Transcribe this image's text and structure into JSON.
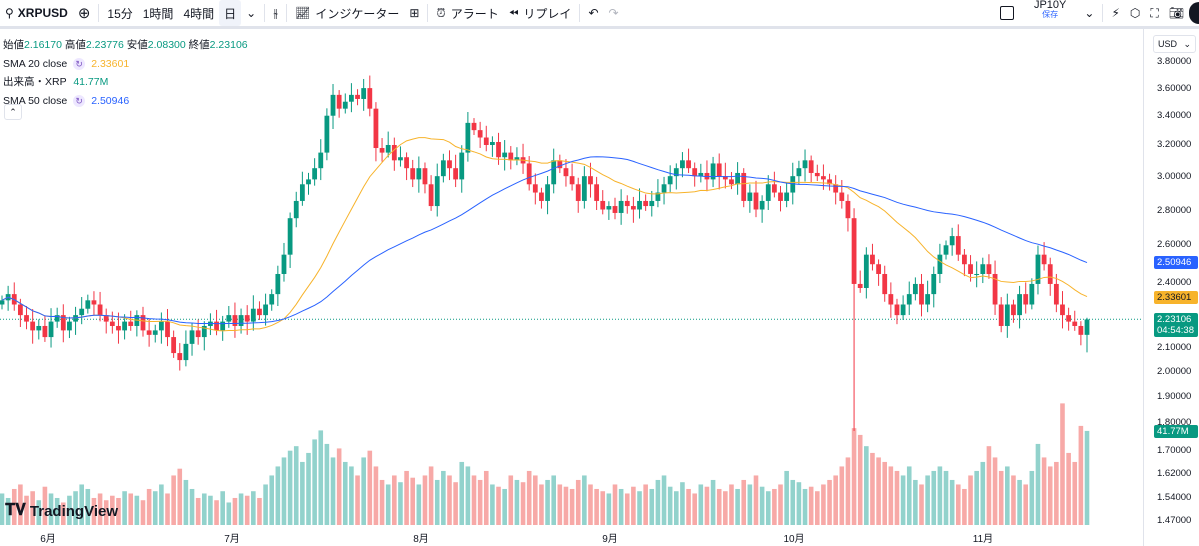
{
  "toolbar": {
    "symbol": "XRPUSD",
    "intervals": [
      "15分",
      "1時間",
      "4時間",
      "日"
    ],
    "indicators": "インジケーター",
    "alert": "アラート",
    "replay": "リプレイ",
    "layout_name": "JP10Y",
    "save": "保存"
  },
  "legend": {
    "open_label": "始値",
    "open": "2.16170",
    "high_label": "高値",
    "high": "2.23776",
    "low_label": "安値",
    "low": "2.08300",
    "close_label": "終値",
    "close": "2.23106",
    "sma20_label": "SMA 20 close",
    "sma20": "2.33601",
    "volume_label": "出来高・XRP",
    "volume": "41.77M",
    "sma50_label": "SMA 50 close",
    "sma50": "2.50946"
  },
  "axis": {
    "currency": "USD",
    "ticks": [
      "3.80000",
      "3.60000",
      "3.40000",
      "3.20000",
      "3.00000",
      "2.80000",
      "2.60000",
      "2.40000",
      "2.10000",
      "2.00000",
      "1.90000",
      "1.80000",
      "1.70000",
      "1.62000",
      "1.54000",
      "1.47000"
    ],
    "last_price": "2.23106",
    "countdown": "04:54:38",
    "sma20_tag": "2.33601",
    "sma50_tag": "2.50946",
    "volume_tag": "41.77M"
  },
  "months": [
    "6月",
    "7月",
    "8月",
    "9月",
    "10月",
    "11月"
  ],
  "brand": "TradingView",
  "colors": {
    "up": "#089981",
    "down": "#f23645",
    "sma20": "#f7b32b",
    "sma50": "#2962ff",
    "vol_up": "#92d2cc",
    "vol_down": "#f7a9a7"
  },
  "chart_data": {
    "type": "candlestick",
    "first_open": 2.3,
    "closes": [
      2.32,
      2.35,
      2.3,
      2.25,
      2.22,
      2.18,
      2.2,
      2.15,
      2.22,
      2.25,
      2.18,
      2.22,
      2.25,
      2.28,
      2.32,
      2.3,
      2.25,
      2.22,
      2.2,
      2.18,
      2.22,
      2.2,
      2.25,
      2.18,
      2.16,
      2.18,
      2.22,
      2.15,
      2.08,
      2.05,
      2.12,
      2.18,
      2.15,
      2.2,
      2.22,
      2.18,
      2.22,
      2.25,
      2.2,
      2.25,
      2.22,
      2.28,
      2.25,
      2.3,
      2.35,
      2.45,
      2.55,
      2.75,
      2.85,
      2.95,
      2.98,
      3.05,
      3.15,
      3.4,
      3.55,
      3.45,
      3.5,
      3.55,
      3.52,
      3.6,
      3.45,
      3.18,
      3.15,
      3.2,
      3.1,
      3.12,
      3.05,
      2.98,
      3.05,
      2.95,
      2.82,
      3.0,
      3.1,
      3.05,
      2.98,
      3.15,
      3.35,
      3.3,
      3.25,
      3.2,
      3.22,
      3.12,
      3.15,
      3.1,
      3.12,
      3.08,
      2.95,
      2.9,
      2.85,
      2.95,
      3.1,
      3.05,
      3.0,
      2.95,
      2.85,
      3.0,
      2.95,
      2.85,
      2.8,
      2.82,
      2.78,
      2.85,
      2.82,
      2.8,
      2.85,
      2.82,
      2.85,
      2.9,
      2.95,
      3.0,
      3.05,
      3.1,
      3.05,
      3.0,
      3.02,
      2.98,
      3.08,
      3.0,
      2.98,
      2.95,
      3.02,
      2.85,
      2.9,
      2.8,
      2.85,
      2.95,
      2.9,
      2.85,
      2.9,
      3.0,
      3.05,
      3.1,
      3.02,
      3.0,
      2.98,
      2.95,
      2.9,
      2.85,
      2.75,
      2.4,
      2.38,
      2.55,
      2.5,
      2.45,
      2.35,
      2.3,
      2.25,
      2.3,
      2.35,
      2.4,
      2.3,
      2.35,
      2.45,
      2.55,
      2.6,
      2.65,
      2.55,
      2.5,
      2.45,
      2.45,
      2.5,
      2.45,
      2.3,
      2.2,
      2.3,
      2.25,
      2.35,
      2.3,
      2.4,
      2.55,
      2.5,
      2.4,
      2.3,
      2.25,
      2.22,
      2.2,
      2.16,
      2.23
    ],
    "volumes": [
      14,
      12,
      16,
      18,
      13,
      15,
      11,
      17,
      14,
      12,
      10,
      13,
      15,
      18,
      16,
      12,
      14,
      11,
      13,
      12,
      15,
      14,
      13,
      11,
      16,
      15,
      18,
      14,
      22,
      25,
      20,
      16,
      12,
      14,
      13,
      11,
      15,
      10,
      12,
      14,
      13,
      15,
      12,
      18,
      22,
      26,
      30,
      33,
      35,
      28,
      32,
      38,
      42,
      36,
      30,
      34,
      28,
      26,
      22,
      30,
      33,
      26,
      20,
      18,
      22,
      19,
      24,
      21,
      18,
      22,
      26,
      20,
      24,
      22,
      19,
      28,
      26,
      22,
      20,
      24,
      18,
      17,
      16,
      22,
      20,
      19,
      24,
      22,
      18,
      20,
      22,
      18,
      17,
      16,
      20,
      22,
      18,
      16,
      15,
      14,
      18,
      16,
      14,
      17,
      15,
      18,
      16,
      20,
      22,
      17,
      15,
      19,
      16,
      14,
      18,
      17,
      20,
      16,
      15,
      18,
      16,
      20,
      18,
      22,
      17,
      15,
      16,
      18,
      24,
      20,
      19,
      16,
      17,
      15,
      18,
      20,
      22,
      26,
      30,
      43,
      40,
      35,
      32,
      30,
      28,
      26,
      24,
      22,
      26,
      20,
      18,
      22,
      24,
      26,
      24,
      20,
      18,
      16,
      22,
      24,
      28,
      35,
      30,
      24,
      26,
      22,
      20,
      18,
      24,
      36,
      30,
      26,
      28,
      54,
      32,
      28,
      44,
      41.77
    ]
  }
}
